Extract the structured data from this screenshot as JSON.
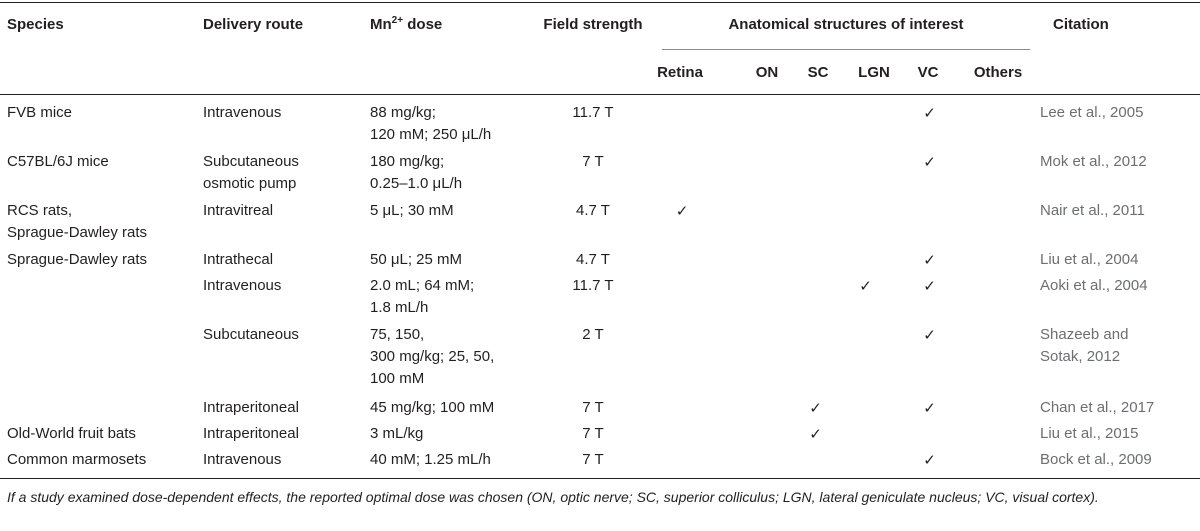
{
  "headers": {
    "species": "Species",
    "route": "Delivery route",
    "dose_prefix": "Mn",
    "dose_sup": "2+",
    "dose_suffix": " dose",
    "field": "Field strength",
    "anat_group": "Anatomical structures of interest",
    "retina": "Retina",
    "on": "ON",
    "sc": "SC",
    "lgn": "LGN",
    "vc": "VC",
    "others": "Others",
    "citation": "Citation"
  },
  "check_symbol": "✓",
  "rows": [
    {
      "species": [
        "FVB mice"
      ],
      "route": [
        "Intravenous"
      ],
      "dose": [
        "88 mg/kg;",
        "120 mM; 250 μL/h"
      ],
      "field": "11.7 T",
      "checks": [
        "vc"
      ],
      "citation": [
        "Lee et al., 2005"
      ]
    },
    {
      "species": [
        "C57BL/6J mice"
      ],
      "route": [
        "Subcutaneous",
        "osmotic pump"
      ],
      "dose": [
        "180 mg/kg;",
        "0.25–1.0 μL/h"
      ],
      "field": "7 T",
      "checks": [
        "vc"
      ],
      "citation": [
        "Mok et al., 2012"
      ]
    },
    {
      "species": [
        "RCS rats,",
        "Sprague-Dawley rats"
      ],
      "route": [
        "Intravitreal"
      ],
      "dose": [
        "5 μL; 30 mM"
      ],
      "field": "4.7 T",
      "checks": [
        "retina"
      ],
      "citation": [
        "Nair et al., 2011"
      ]
    },
    {
      "species": [
        "Sprague-Dawley rats"
      ],
      "route": [
        "Intrathecal"
      ],
      "dose": [
        "50 μL; 25 mM"
      ],
      "field": "4.7 T",
      "checks": [
        "vc"
      ],
      "citation": [
        "Liu et al., 2004"
      ]
    },
    {
      "species": [],
      "route": [
        "Intravenous"
      ],
      "dose": [
        "2.0 mL; 64 mM;",
        "1.8 mL/h"
      ],
      "field": "11.7 T",
      "checks": [
        "lgn",
        "vc"
      ],
      "citation": [
        "Aoki et al., 2004"
      ]
    },
    {
      "species": [],
      "route": [
        "Subcutaneous"
      ],
      "dose": [
        "75, 150,",
        "300 mg/kg; 25, 50,",
        "100 mM"
      ],
      "field": "2 T",
      "checks": [
        "vc"
      ],
      "citation": [
        "Shazeeb and",
        "Sotak, 2012"
      ]
    },
    {
      "species": [],
      "route": [
        "Intraperitoneal"
      ],
      "dose": [
        "45 mg/kg; 100 mM"
      ],
      "field": "7 T",
      "checks": [
        "sc",
        "vc"
      ],
      "citation": [
        "Chan et al., 2017"
      ]
    },
    {
      "species": [
        "Old-World fruit bats"
      ],
      "route": [
        "Intraperitoneal"
      ],
      "dose": [
        "3 mL/kg"
      ],
      "field": "7 T",
      "checks": [
        "sc"
      ],
      "citation": [
        "Liu et al., 2015"
      ]
    },
    {
      "species": [
        "Common marmosets"
      ],
      "route": [
        "Intravenous"
      ],
      "dose": [
        "40 mM; 1.25 mL/h"
      ],
      "field": "7 T",
      "checks": [
        "vc"
      ],
      "citation": [
        "Bock et al., 2009"
      ]
    }
  ],
  "footnote": "If a study examined dose-dependent effects, the reported optimal dose was chosen (ON, optic nerve; SC, superior colliculus; LGN, lateral geniculate nucleus; VC, visual cortex)."
}
